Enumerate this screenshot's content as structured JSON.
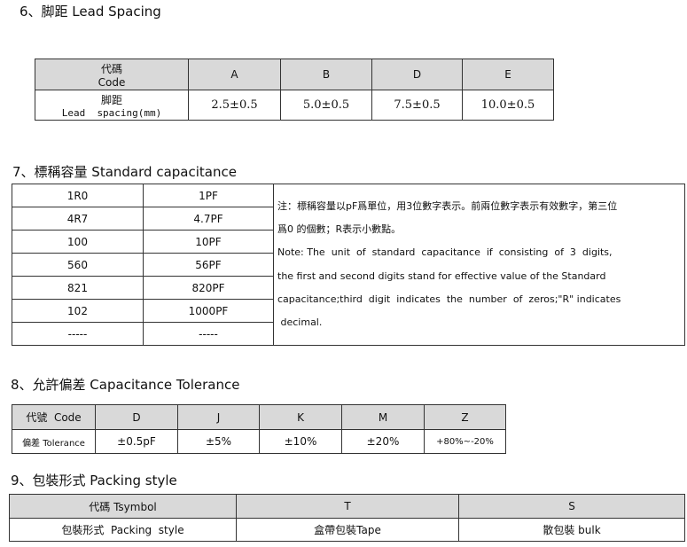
{
  "sections": {
    "lead": {
      "title": "6、脚距 Lead  Spacing",
      "header_label_cn": "代碼",
      "header_label_en": "Code",
      "row_label_cn": "脚距",
      "row_label_en": "Lead  spacing(mm)",
      "codes": [
        "A",
        "B",
        "D",
        "E"
      ],
      "values": [
        "2.5±0.5",
        "5.0±0.5",
        "7.5±0.5",
        "10.0±0.5"
      ]
    },
    "capacitance": {
      "title": "7、標稱容量 Standard  capacitance",
      "rows": [
        {
          "code": "1R0",
          "value": "1PF"
        },
        {
          "code": "4R7",
          "value": "4.7PF"
        },
        {
          "code": "100",
          "value": "10PF"
        },
        {
          "code": "560",
          "value": "56PF"
        },
        {
          "code": "821",
          "value": "820PF"
        },
        {
          "code": "102",
          "value": "1000PF"
        },
        {
          "code": "-----",
          "value": "-----"
        }
      ],
      "note_cn_1": "注：標稱容量以pF爲單位，用3位數字表示。前兩位數字表示有效數字，第三位",
      "note_cn_2": "爲0 的個數；R表示小數點。",
      "note_en_1": "Note: The  unit  of  standard  capacitance  if  consisting  of  3  digits,",
      "note_en_2": "the first and second digits stand for effective value of the Standard",
      "note_en_3": "capacitance;third  digit  indicates  the  number  of  zeros;\"R\" indicates",
      "note_en_4": " decimal."
    },
    "tolerance": {
      "title": "8、允許偏差 Capacitance Tolerance",
      "header_label": "代號  Code",
      "row_label": "偏差 Tolerance",
      "codes": [
        "D",
        "J",
        "K",
        "M",
        "Z"
      ],
      "values": [
        "±0.5pF",
        "±5%",
        "±10%",
        "±20%",
        "+80%~-20%"
      ]
    },
    "packing": {
      "title": "9、包裝形式 Packing style",
      "header_label": "代碼 Tsymbol",
      "row_label": "包裝形式  Packing  style",
      "codes": [
        "T",
        "S"
      ],
      "values": [
        "盒帶包裝Tape",
        "散包裝 bulk"
      ]
    }
  }
}
